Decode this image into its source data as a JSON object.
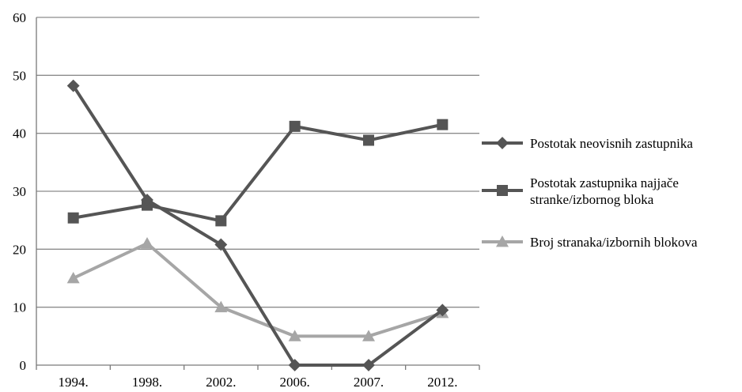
{
  "chart_data": {
    "type": "line",
    "categories": [
      "1994.",
      "1998.",
      "2002.",
      "2006.",
      "2007.",
      "2012."
    ],
    "ylim": [
      0,
      60
    ],
    "yticks": [
      "0",
      "10",
      "20",
      "30",
      "40",
      "50",
      "60"
    ],
    "grid": "horizontal",
    "legend_position": "right",
    "series": [
      {
        "name": "Postotak neovisnih zastupnika",
        "legend_lines": [
          "Postotak neovisnih zastupnika"
        ],
        "marker": "diamond",
        "color": "#555555",
        "values": [
          48.2,
          28.5,
          20.8,
          0,
          0,
          9.5
        ]
      },
      {
        "name": "Postotak zastupnika najjače stranke/izbornog bloka",
        "legend_lines": [
          "Postotak zastupnika najjače",
          "stranke/izbornog bloka"
        ],
        "marker": "square",
        "color": "#555555",
        "values": [
          25.4,
          27.6,
          24.9,
          41.2,
          38.8,
          41.5
        ]
      },
      {
        "name": "Broj stranaka/izbornih blokova",
        "legend_lines": [
          "Broj stranaka/izbornih blokova"
        ],
        "marker": "triangle",
        "color": "#a6a6a6",
        "values": [
          15,
          21,
          10,
          5,
          5,
          9
        ]
      }
    ]
  }
}
